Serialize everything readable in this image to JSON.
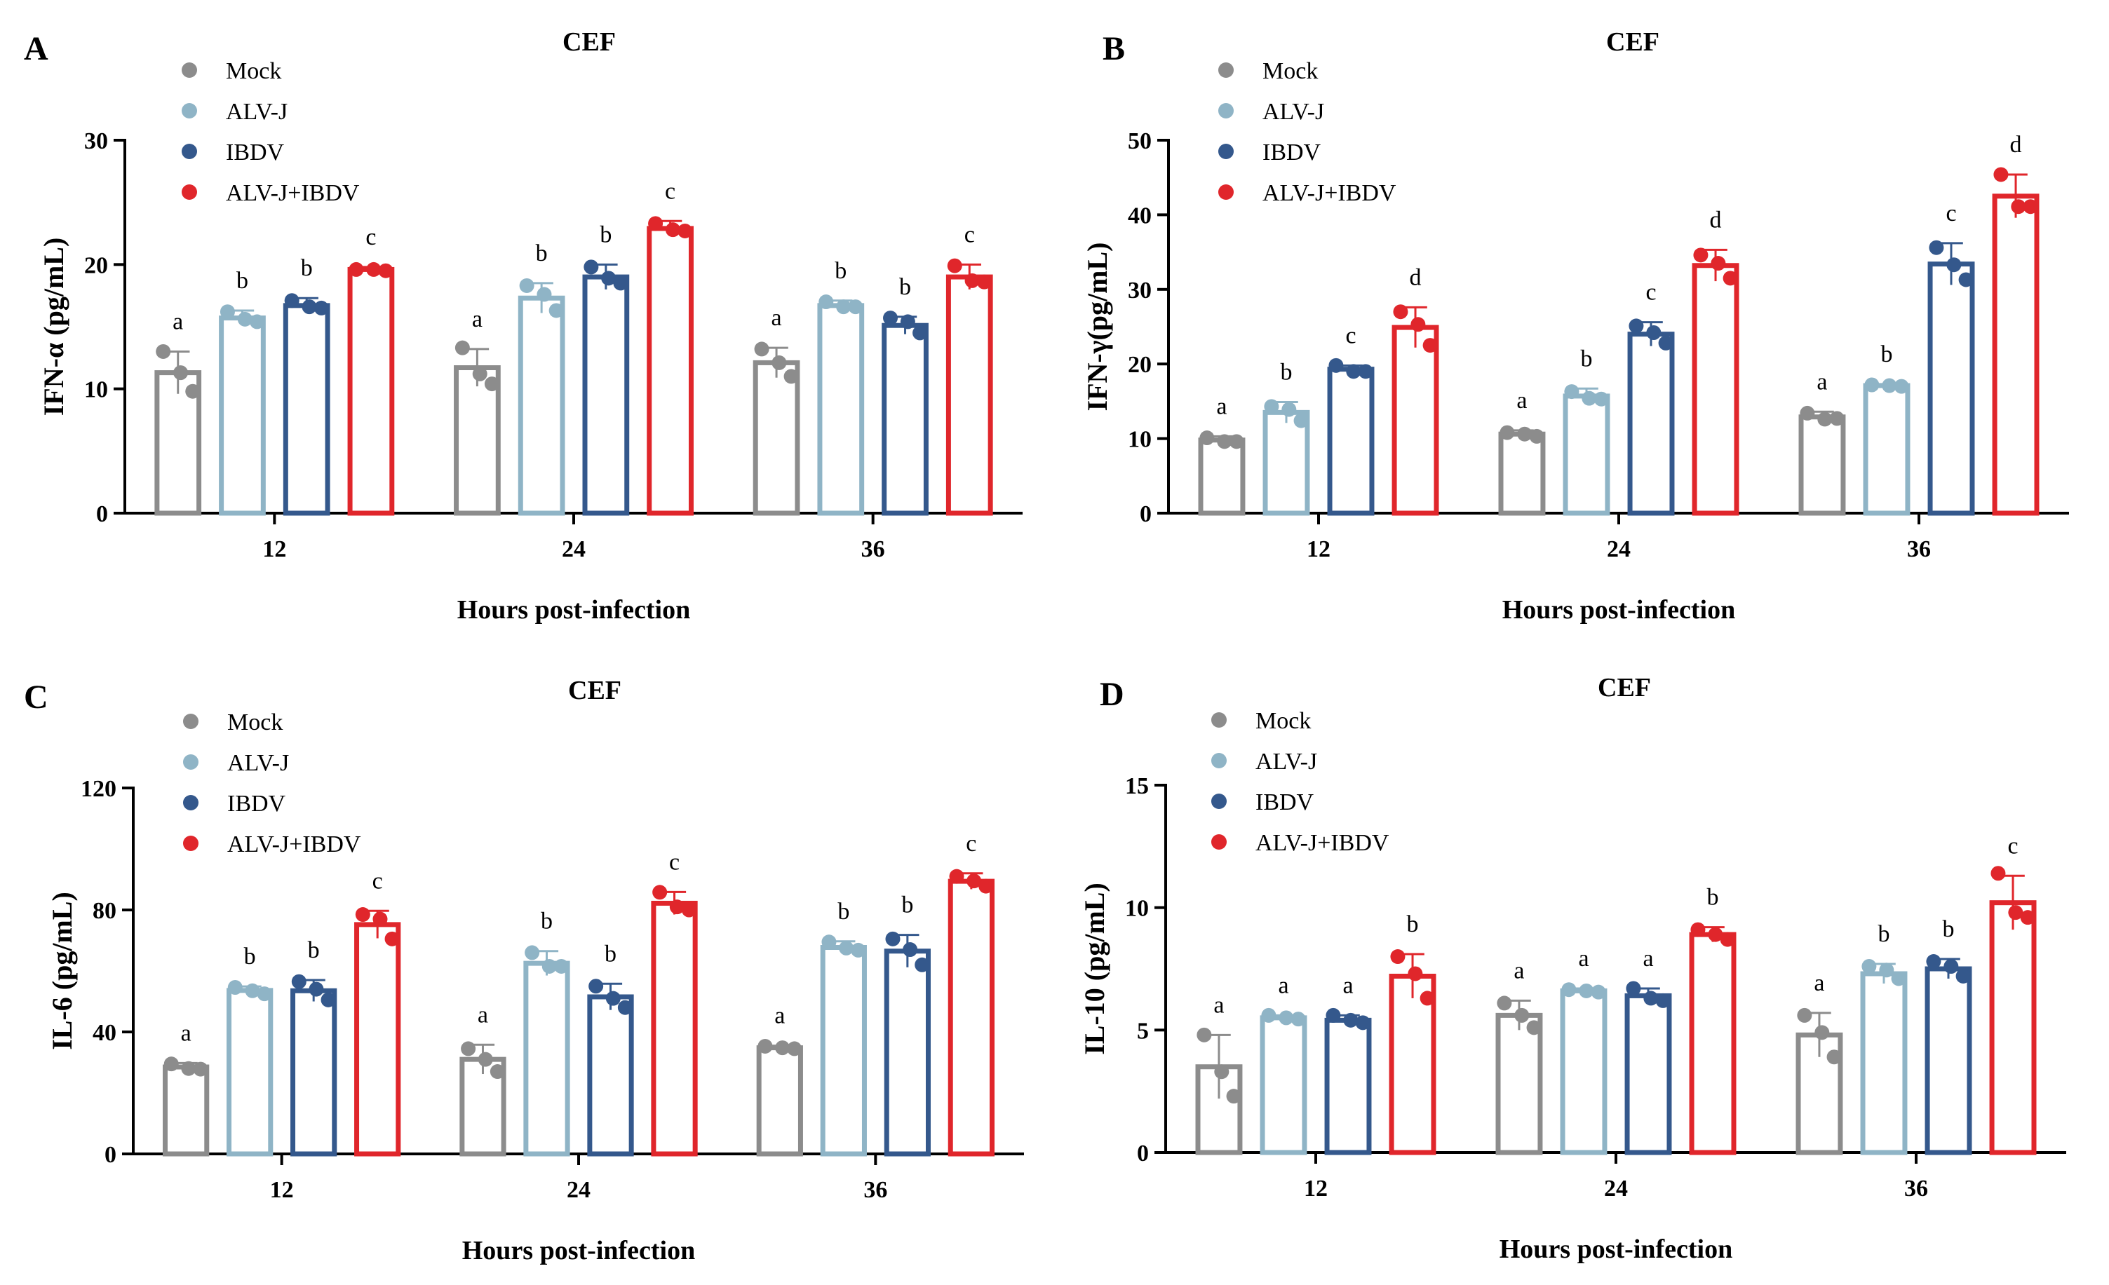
{
  "figure": {
    "legend_labels": [
      "Mock",
      "ALV-J",
      "IBDV",
      "ALV-J+IBDV"
    ]
  },
  "colors": {
    "Mock": "#8c8c8c",
    "ALV-J": "#8fb4c6",
    "IBDV": "#34588c",
    "ALV-J+IBDV": "#e0262b",
    "axis": "#000000"
  },
  "chart_data": [
    {
      "panel": "A",
      "type": "bar",
      "title": "CEF",
      "xlabel": "Hours post-infection",
      "ylabel": "IFN-α (pg/mL)",
      "categories": [
        "12",
        "24",
        "36"
      ],
      "ylim": [
        0,
        30
      ],
      "yticks": [
        0,
        10,
        20,
        30
      ],
      "series": [
        {
          "name": "Mock",
          "values": [
            11.3,
            11.7,
            12.1
          ],
          "errors": [
            1.7,
            1.5,
            1.2
          ],
          "points": [
            [
              13,
              11.3,
              9.8
            ],
            [
              13.3,
              11.2,
              10.4
            ],
            [
              13.2,
              12.1,
              11
            ]
          ],
          "letters": [
            "a",
            "a",
            "a"
          ]
        },
        {
          "name": "ALV-J",
          "values": [
            15.7,
            17.3,
            16.7
          ],
          "errors": [
            0.6,
            1.2,
            0.4
          ],
          "points": [
            [
              16.2,
              15.6,
              15.4
            ],
            [
              18.3,
              17.6,
              16.3
            ],
            [
              17,
              16.6,
              16.6
            ]
          ],
          "letters": [
            "b",
            "b",
            "b"
          ]
        },
        {
          "name": "IBDV",
          "values": [
            16.7,
            19,
            15.1
          ],
          "errors": [
            0.6,
            1,
            0.7
          ],
          "points": [
            [
              17.1,
              16.6,
              16.5
            ],
            [
              19.8,
              18.9,
              18.5
            ],
            [
              15.7,
              15.4,
              14.5
            ]
          ],
          "letters": [
            "b",
            "b",
            "b"
          ]
        },
        {
          "name": "ALV-J+IBDV",
          "values": [
            19.6,
            22.9,
            19
          ],
          "errors": [
            0.2,
            0.6,
            1
          ],
          "points": [
            [
              19.6,
              19.6,
              19.5
            ],
            [
              23.3,
              22.8,
              22.7
            ],
            [
              19.9,
              18.7,
              18.6
            ]
          ],
          "letters": [
            "c",
            "c",
            "c"
          ]
        }
      ]
    },
    {
      "panel": "B",
      "type": "bar",
      "title": "CEF",
      "xlabel": "Hours post-infection",
      "ylabel": "IFN-γ(pg/mL)",
      "categories": [
        "12",
        "24",
        "36"
      ],
      "ylim": [
        0,
        50
      ],
      "yticks": [
        0,
        10,
        20,
        30,
        40,
        50
      ],
      "series": [
        {
          "name": "Mock",
          "values": [
            9.8,
            10.6,
            12.9
          ],
          "errors": [
            0.5,
            0.5,
            0.7
          ],
          "points": [
            [
              10.1,
              9.6,
              9.6
            ],
            [
              10.8,
              10.6,
              10.3
            ],
            [
              13.4,
              12.6,
              12.7
            ]
          ],
          "letters": [
            "a",
            "a",
            "a"
          ]
        },
        {
          "name": "ALV-J",
          "values": [
            13.5,
            15.7,
            17.1
          ],
          "errors": [
            1.4,
            1,
            0.2
          ],
          "points": [
            [
              14.3,
              13.9,
              12.4
            ],
            [
              16.3,
              15.4,
              15.3
            ],
            [
              17.2,
              17.1,
              17
            ]
          ],
          "letters": [
            "b",
            "b",
            "b"
          ]
        },
        {
          "name": "IBDV",
          "values": [
            19.3,
            24,
            33.4
          ],
          "errors": [
            0.5,
            1.6,
            2.8
          ],
          "points": [
            [
              19.8,
              19,
              19
            ],
            [
              25.1,
              24.2,
              22.8
            ],
            [
              35.6,
              33.3,
              31.3
            ]
          ],
          "letters": [
            "c",
            "c",
            "c"
          ]
        },
        {
          "name": "ALV-J+IBDV",
          "values": [
            24.9,
            33.2,
            42.5
          ],
          "errors": [
            2.7,
            2.1,
            2.9
          ],
          "points": [
            [
              27,
              25.3,
              22.5
            ],
            [
              34.6,
              33.5,
              31.5
            ],
            [
              45.4,
              41.1,
              41.1
            ]
          ],
          "letters": [
            "d",
            "d",
            "d"
          ]
        }
      ]
    },
    {
      "panel": "C",
      "type": "bar",
      "title": "CEF",
      "xlabel": "Hours post-infection",
      "ylabel": "IL-6 (pg/mL)",
      "categories": [
        "12",
        "24",
        "36"
      ],
      "ylim": [
        0,
        120
      ],
      "yticks": [
        0,
        40,
        80,
        120
      ],
      "series": [
        {
          "name": "Mock",
          "values": [
            28.5,
            31,
            34.8
          ],
          "errors": [
            1.3,
            4.8,
            0.7
          ],
          "points": [
            [
              29.5,
              28,
              27.8
            ],
            [
              34.5,
              31,
              27
            ],
            [
              35.3,
              34.8,
              34.5
            ]
          ],
          "letters": [
            "a",
            "a",
            "a"
          ]
        },
        {
          "name": "ALV-J",
          "values": [
            53.6,
            62.5,
            67.7
          ],
          "errors": [
            1.3,
            4,
            2
          ],
          "points": [
            [
              54.6,
              53.5,
              52.5
            ],
            [
              66,
              61.5,
              61.5
            ],
            [
              69.5,
              67.5,
              66.8
            ]
          ],
          "letters": [
            "b",
            "b",
            "b"
          ]
        },
        {
          "name": "IBDV",
          "values": [
            53.5,
            51.5,
            66.5
          ],
          "errors": [
            3.5,
            4.3,
            5.3
          ],
          "points": [
            [
              56.5,
              54,
              50.5
            ],
            [
              55,
              51,
              48
            ],
            [
              70.5,
              67,
              62
            ]
          ],
          "letters": [
            "b",
            "b",
            "b"
          ]
        },
        {
          "name": "ALV-J+IBDV",
          "values": [
            75.2,
            82.2,
            89.4
          ],
          "errors": [
            4.5,
            3.7,
            2.6
          ],
          "points": [
            [
              78.5,
              77,
              70.5
            ],
            [
              85.8,
              81,
              80
            ],
            [
              91,
              89.5,
              87.8
            ]
          ],
          "letters": [
            "c",
            "c",
            "c"
          ]
        }
      ]
    },
    {
      "panel": "D",
      "type": "bar",
      "title": "CEF",
      "xlabel": "Hours post-infection",
      "ylabel": "IL-10 (pg/mL)",
      "categories": [
        "12",
        "24",
        "36"
      ],
      "ylim": [
        0,
        15
      ],
      "yticks": [
        0,
        5,
        10,
        15
      ],
      "series": [
        {
          "name": "Mock",
          "values": [
            3.5,
            5.6,
            4.8
          ],
          "errors": [
            1.3,
            0.6,
            0.9
          ],
          "points": [
            [
              4.8,
              3.3,
              2.3
            ],
            [
              6.1,
              5.6,
              5.1
            ],
            [
              5.6,
              4.9,
              3.9
            ]
          ],
          "letters": [
            "a",
            "a",
            "a"
          ]
        },
        {
          "name": "ALV-J",
          "values": [
            5.5,
            6.6,
            7.3
          ],
          "errors": [
            0.1,
            0.1,
            0.4
          ],
          "points": [
            [
              5.6,
              5.5,
              5.45
            ],
            [
              6.65,
              6.6,
              6.55
            ],
            [
              7.6,
              7.45,
              7.1
            ]
          ],
          "letters": [
            "a",
            "a",
            "b"
          ]
        },
        {
          "name": "IBDV",
          "values": [
            5.4,
            6.4,
            7.5
          ],
          "errors": [
            0.2,
            0.3,
            0.4
          ],
          "points": [
            [
              5.6,
              5.4,
              5.3
            ],
            [
              6.7,
              6.3,
              6.2
            ],
            [
              7.8,
              7.6,
              7.2
            ]
          ],
          "letters": [
            "a",
            "a",
            "b"
          ]
        },
        {
          "name": "ALV-J+IBDV",
          "values": [
            7.2,
            8.9,
            10.2
          ],
          "errors": [
            0.9,
            0.3,
            1.1
          ],
          "points": [
            [
              8,
              7.3,
              6.3
            ],
            [
              9.1,
              8.9,
              8.7
            ],
            [
              11.4,
              9.8,
              9.6
            ]
          ],
          "letters": [
            "b",
            "b",
            "c"
          ]
        }
      ]
    }
  ]
}
